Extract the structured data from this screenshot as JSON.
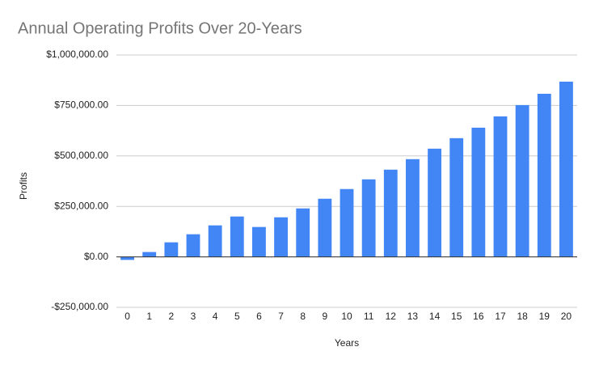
{
  "chart_data": {
    "type": "bar",
    "title": "Annual Operating Profits Over 20-Years",
    "x_label": "Years",
    "y_label": "Profits",
    "categories": [
      "0",
      "1",
      "2",
      "3",
      "4",
      "5",
      "6",
      "7",
      "8",
      "9",
      "10",
      "11",
      "12",
      "13",
      "14",
      "15",
      "16",
      "17",
      "18",
      "19",
      "20"
    ],
    "values": [
      -15000,
      24000,
      72000,
      112000,
      156000,
      200000,
      148000,
      196000,
      240000,
      288000,
      336000,
      384000,
      432000,
      484000,
      536000,
      588000,
      640000,
      696000,
      752000,
      808000,
      868000
    ],
    "color": "#4285f4",
    "ylim": [
      -250000,
      1000000
    ],
    "yticks": [
      {
        "value": -250000,
        "label": "-$250,000.00"
      },
      {
        "value": 0,
        "label": "$0.00"
      },
      {
        "value": 250000,
        "label": "$250,000.00"
      },
      {
        "value": 500000,
        "label": "$500,000.00"
      },
      {
        "value": 750000,
        "label": "$750,000.00"
      },
      {
        "value": 1000000,
        "label": "$1,000,000.00"
      }
    ],
    "grid": true
  }
}
